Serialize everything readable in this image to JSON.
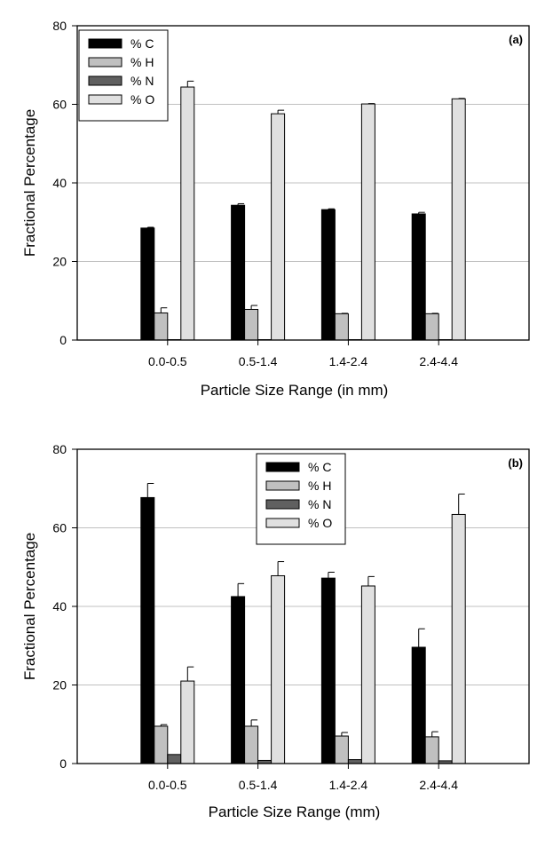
{
  "chart_data": [
    {
      "type": "bar",
      "panel_label": "(a)",
      "xlabel": "Particle Size Range (in mm)",
      "ylabel": "Fractional Percentage",
      "ylim": [
        0,
        80
      ],
      "yticks": [
        "0",
        "20",
        "40",
        "60",
        "80"
      ],
      "grid": true,
      "legend_position": "top-left",
      "categories": [
        "0.0-0.5",
        "0.5-1.4",
        "1.4-2.4",
        "2.4-4.4"
      ],
      "series": [
        {
          "name": "% C",
          "color": "#000000",
          "values": [
            28.5,
            34.3,
            33.2,
            32.1
          ],
          "errors": [
            0.2,
            0.4,
            0.2,
            0.4
          ]
        },
        {
          "name": "% H",
          "color": "#c0c0c0",
          "values": [
            6.9,
            7.8,
            6.7,
            6.7
          ],
          "errors": [
            1.3,
            1.0,
            0.1,
            0.1
          ]
        },
        {
          "name": "% N",
          "color": "#606060",
          "values": [
            0.1,
            0.1,
            0.1,
            0.1
          ],
          "errors": [
            0,
            0,
            0,
            0
          ]
        },
        {
          "name": "% O",
          "color": "#e0e0e0",
          "values": [
            64.4,
            57.6,
            60.1,
            61.4
          ],
          "errors": [
            1.5,
            0.9,
            0.1,
            0.1
          ]
        }
      ]
    },
    {
      "type": "bar",
      "panel_label": "(b)",
      "xlabel": "Particle Size Range (mm)",
      "ylabel": "Fractional Percentage",
      "ylim": [
        0,
        80
      ],
      "yticks": [
        "0",
        "20",
        "40",
        "60",
        "80"
      ],
      "grid": true,
      "legend_position": "top-center",
      "categories": [
        "0.0-0.5",
        "0.5-1.4",
        "1.4-2.4",
        "2.4-4.4"
      ],
      "series": [
        {
          "name": "% C",
          "color": "#000000",
          "values": [
            67.7,
            42.5,
            47.2,
            29.6
          ],
          "errors": [
            3.6,
            3.3,
            1.5,
            4.7
          ]
        },
        {
          "name": "% H",
          "color": "#c0c0c0",
          "values": [
            9.5,
            9.5,
            7.0,
            6.8
          ],
          "errors": [
            0.4,
            1.6,
            0.9,
            1.3
          ]
        },
        {
          "name": "% N",
          "color": "#606060",
          "values": [
            2.3,
            0.8,
            1.0,
            0.7
          ],
          "errors": [
            0,
            0,
            0,
            0
          ]
        },
        {
          "name": "% O",
          "color": "#e0e0e0",
          "values": [
            21.0,
            47.8,
            45.2,
            63.4
          ],
          "errors": [
            3.6,
            3.6,
            2.4,
            5.2
          ]
        }
      ]
    }
  ]
}
